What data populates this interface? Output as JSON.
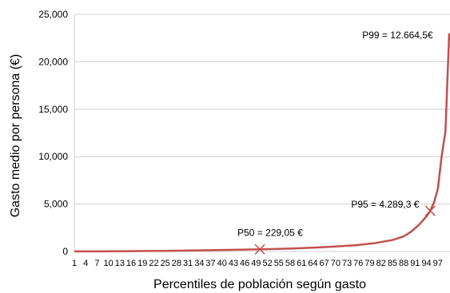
{
  "chart_data": {
    "type": "line",
    "title": "",
    "xlabel": "Percentiles de población según gasto",
    "ylabel": "Gasto medio por persona (€)",
    "ylim": [
      0,
      25000
    ],
    "yticks": [
      0,
      5000,
      10000,
      15000,
      20000,
      25000
    ],
    "ytick_labels": [
      "0",
      "5,000",
      "10,000",
      "15,000",
      "20,000",
      "25,000"
    ],
    "xlim": [
      1,
      100
    ],
    "grid": "horizontal",
    "legend": "none",
    "line_color": "#c0504d",
    "x_tick_labels": [
      "1",
      "4",
      "7",
      "10",
      "13",
      "16",
      "19",
      "22",
      "25",
      "28",
      "31",
      "34",
      "37",
      "40",
      "43",
      "46",
      "49",
      "52",
      "55",
      "58",
      "61",
      "64",
      "67",
      "70",
      "73",
      "76",
      "79",
      "82",
      "85",
      "88",
      "91",
      "94",
      "97"
    ],
    "series": [
      {
        "x": [
          1,
          5,
          10,
          15,
          20,
          25,
          30,
          35,
          40,
          45,
          50,
          55,
          60,
          65,
          70,
          75,
          80,
          85,
          88,
          90,
          92,
          94,
          95,
          96,
          97,
          98,
          99,
          100
        ],
        "values": [
          5,
          10,
          20,
          35,
          50,
          70,
          95,
          125,
          160,
          195,
          229,
          280,
          340,
          420,
          520,
          660,
          860,
          1200,
          1600,
          2100,
          2800,
          3700,
          4289,
          5200,
          6600,
          10000,
          12664,
          23000
        ]
      }
    ],
    "markers": [
      {
        "x": 50,
        "y": 229.05,
        "label": "P50 = 229,05 €"
      },
      {
        "x": 95,
        "y": 4289.3,
        "label": "P95 = 4.289,3 €"
      },
      {
        "x": 99,
        "y": 12664.5,
        "label": "P99 = 12.664,5€"
      }
    ]
  }
}
